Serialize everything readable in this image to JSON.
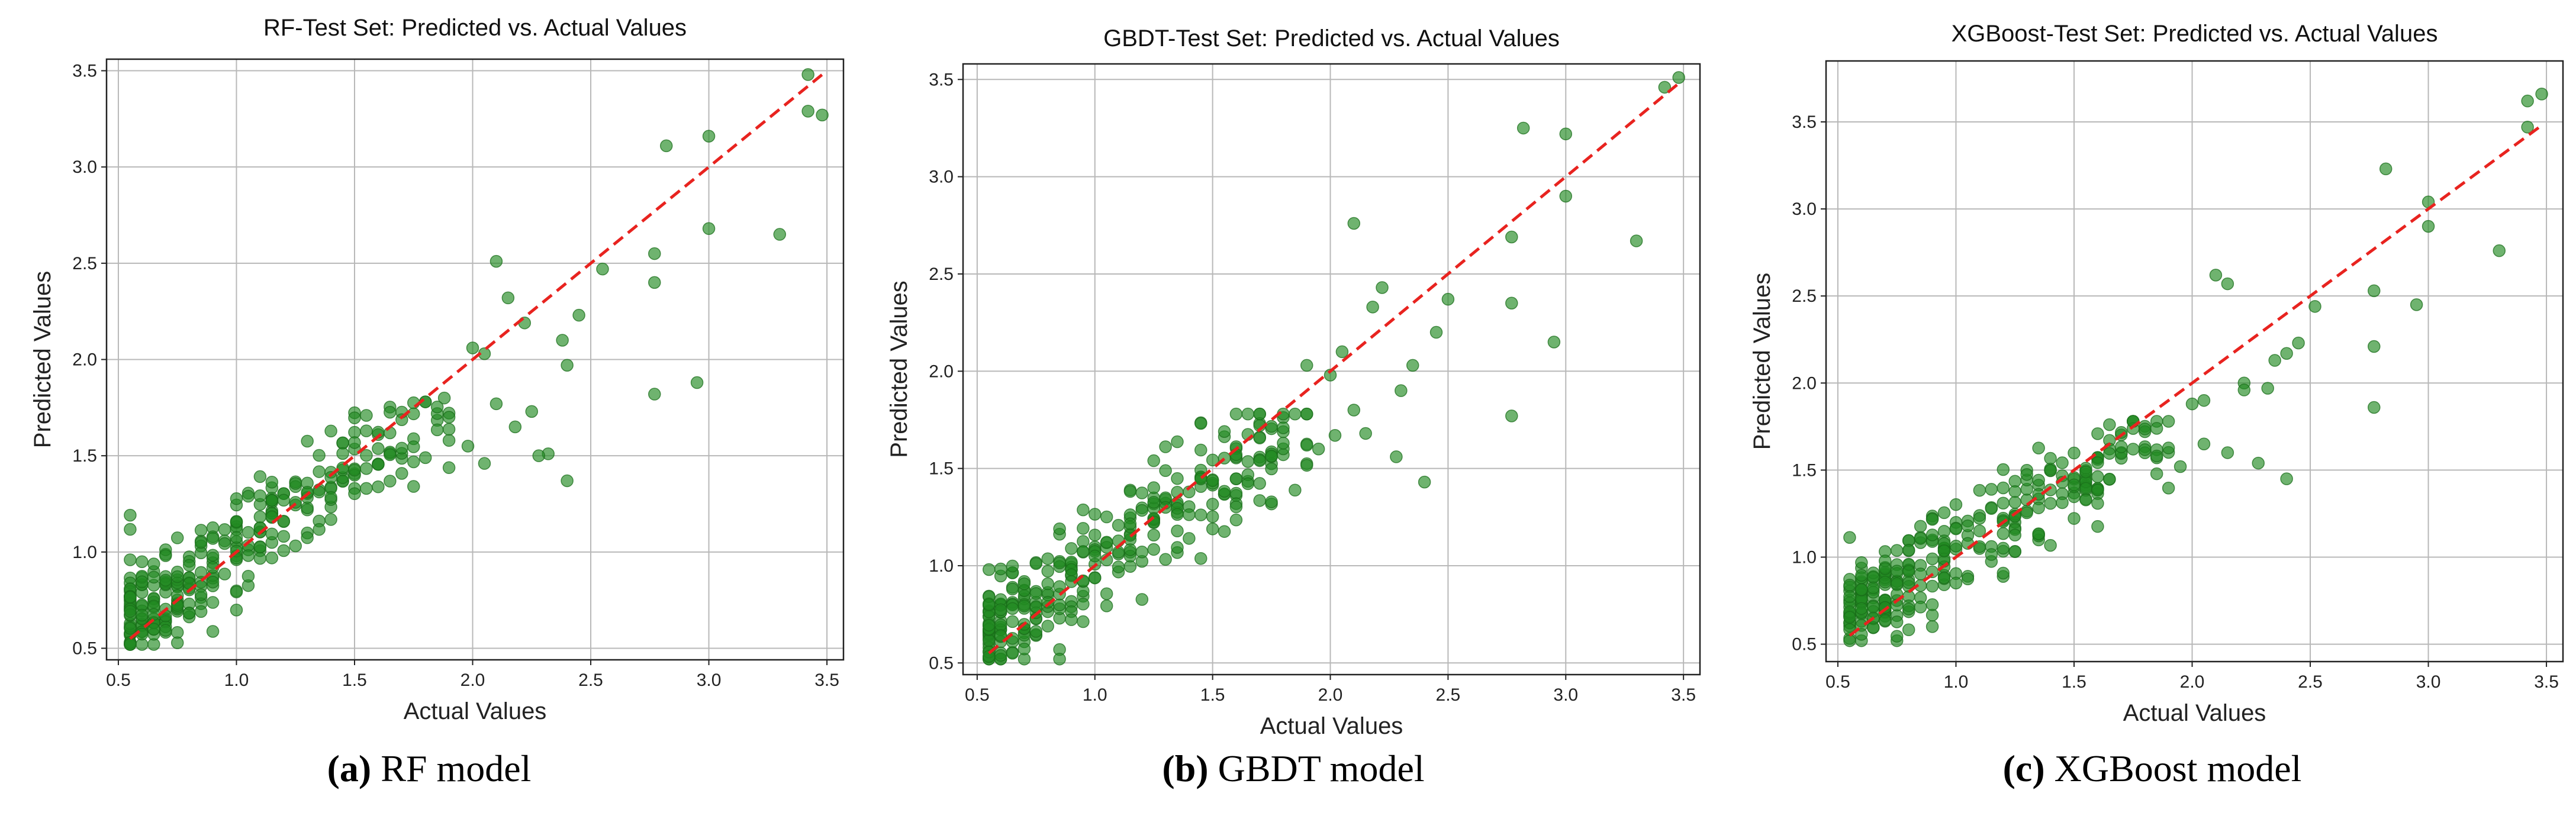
{
  "figure": {
    "panels": [
      {
        "caption_label": "(a)",
        "caption_text": "RF model"
      },
      {
        "caption_label": "(b)",
        "caption_text": "GBDT model"
      },
      {
        "caption_label": "(c)",
        "caption_text": "XGBoost model"
      }
    ]
  },
  "colors": {
    "points": "#228b22",
    "reference_line": "#e8231f",
    "grid": "#b8b8b8"
  },
  "chart_data": [
    {
      "type": "scatter",
      "title": "RF-Test Set: Predicted vs. Actual Values",
      "xlabel": "Actual Values",
      "ylabel": "Predicted Values",
      "xlim": [
        0.45,
        3.57
      ],
      "ylim": [
        0.44,
        3.56
      ],
      "xticks": [
        0.5,
        1.0,
        1.5,
        2.0,
        2.5,
        3.0,
        3.5
      ],
      "yticks": [
        0.5,
        1.0,
        1.5,
        2.0,
        2.5,
        3.0,
        3.5
      ],
      "xtick_labels": [
        "0.5",
        "1.0",
        "1.5",
        "2.0",
        "2.5",
        "3.0",
        "3.5"
      ],
      "ytick_labels": [
        "0.5",
        "1.0",
        "1.5",
        "2.0",
        "2.5",
        "3.0",
        "3.5"
      ],
      "grid": true,
      "reference_line": {
        "from": [
          0.55,
          0.55
        ],
        "to": [
          3.48,
          3.48
        ],
        "style": "dashed"
      },
      "highlight_points": [
        [
          3.42,
          3.48
        ],
        [
          3.48,
          3.27
        ],
        [
          3.42,
          3.29
        ],
        [
          3.3,
          2.65
        ],
        [
          3.0,
          3.16
        ],
        [
          3.0,
          2.68
        ],
        [
          2.82,
          3.11
        ],
        [
          2.77,
          2.55
        ],
        [
          2.77,
          2.4
        ],
        [
          2.95,
          1.88
        ],
        [
          2.77,
          1.82
        ],
        [
          2.55,
          2.47
        ],
        [
          2.45,
          2.23
        ],
        [
          2.38,
          2.1
        ],
        [
          2.4,
          1.97
        ],
        [
          2.4,
          1.37
        ],
        [
          2.32,
          1.51
        ],
        [
          2.28,
          1.5
        ],
        [
          2.25,
          1.73
        ],
        [
          2.22,
          2.19
        ],
        [
          2.15,
          2.32
        ],
        [
          2.1,
          2.51
        ],
        [
          2.05,
          2.03
        ],
        [
          2.0,
          2.06
        ],
        [
          2.1,
          1.77
        ],
        [
          2.18,
          1.65
        ],
        [
          2.05,
          1.46
        ],
        [
          1.98,
          1.55
        ],
        [
          1.88,
          1.8
        ]
      ],
      "cluster_points": 300,
      "seed": 11
    },
    {
      "type": "scatter",
      "title": "GBDT-Test Set: Predicted vs. Actual Values",
      "xlabel": "Actual Values",
      "ylabel": "Predicted Values",
      "xlim": [
        0.44,
        3.57
      ],
      "ylim": [
        0.44,
        3.58
      ],
      "xticks": [
        0.5,
        1.0,
        1.5,
        2.0,
        2.5,
        3.0,
        3.5
      ],
      "yticks": [
        0.5,
        1.0,
        1.5,
        2.0,
        2.5,
        3.0,
        3.5
      ],
      "xtick_labels": [
        "0.5",
        "1.0",
        "1.5",
        "2.0",
        "2.5",
        "3.0",
        "3.5"
      ],
      "ytick_labels": [
        "0.5",
        "1.0",
        "1.5",
        "2.0",
        "2.5",
        "3.0",
        "3.5"
      ],
      "grid": true,
      "reference_line": {
        "from": [
          0.55,
          0.55
        ],
        "to": [
          3.48,
          3.48
        ],
        "style": "dashed"
      },
      "highlight_points": [
        [
          3.48,
          3.51
        ],
        [
          3.42,
          3.46
        ],
        [
          3.3,
          2.67
        ],
        [
          3.0,
          3.22
        ],
        [
          3.0,
          2.9
        ],
        [
          2.95,
          2.15
        ],
        [
          2.82,
          3.25
        ],
        [
          2.77,
          2.69
        ],
        [
          2.77,
          2.35
        ],
        [
          2.77,
          1.77
        ],
        [
          2.5,
          2.37
        ],
        [
          2.45,
          2.2
        ],
        [
          2.4,
          1.43
        ],
        [
          2.35,
          2.03
        ],
        [
          2.3,
          1.9
        ],
        [
          2.28,
          1.56
        ],
        [
          2.22,
          2.43
        ],
        [
          2.18,
          2.33
        ],
        [
          2.15,
          1.68
        ],
        [
          2.1,
          2.76
        ],
        [
          2.05,
          2.1
        ],
        [
          2.1,
          1.8
        ],
        [
          2.0,
          1.98
        ],
        [
          1.95,
          1.6
        ],
        [
          2.02,
          1.67
        ],
        [
          1.9,
          2.03
        ]
      ],
      "cluster_points": 300,
      "seed": 23
    },
    {
      "type": "scatter",
      "title": "XGBoost-Test Set: Predicted vs. Actual Values",
      "xlabel": "Actual Values",
      "ylabel": "Predicted Values",
      "xlim": [
        0.45,
        3.57
      ],
      "ylim": [
        0.4,
        3.85
      ],
      "xticks": [
        0.5,
        1.0,
        1.5,
        2.0,
        2.5,
        3.0,
        3.5
      ],
      "yticks": [
        0.5,
        1.0,
        1.5,
        2.0,
        2.5,
        3.0,
        3.5
      ],
      "xtick_labels": [
        "0.5",
        "1.0",
        "1.5",
        "2.0",
        "2.5",
        "3.0",
        "3.5"
      ],
      "ytick_labels": [
        "0.5",
        "1.0",
        "1.5",
        "2.0",
        "2.5",
        "3.0",
        "3.5"
      ],
      "grid": true,
      "reference_line": {
        "from": [
          0.55,
          0.55
        ],
        "to": [
          3.48,
          3.48
        ],
        "style": "dashed"
      },
      "highlight_points": [
        [
          3.48,
          3.66
        ],
        [
          3.42,
          3.62
        ],
        [
          3.42,
          3.47
        ],
        [
          3.3,
          2.76
        ],
        [
          3.0,
          3.04
        ],
        [
          3.0,
          2.9
        ],
        [
          2.95,
          2.45
        ],
        [
          2.82,
          3.23
        ],
        [
          2.77,
          2.53
        ],
        [
          2.77,
          2.21
        ],
        [
          2.77,
          1.86
        ],
        [
          2.52,
          2.44
        ],
        [
          2.45,
          2.23
        ],
        [
          2.4,
          2.17
        ],
        [
          2.4,
          1.45
        ],
        [
          2.35,
          2.13
        ],
        [
          2.32,
          1.97
        ],
        [
          2.28,
          1.54
        ],
        [
          2.22,
          2.0
        ],
        [
          2.22,
          1.96
        ],
        [
          2.15,
          2.57
        ],
        [
          2.1,
          2.62
        ],
        [
          2.05,
          1.9
        ],
        [
          2.0,
          1.88
        ],
        [
          2.05,
          1.65
        ],
        [
          1.95,
          1.52
        ],
        [
          2.15,
          1.6
        ]
      ],
      "cluster_points": 300,
      "seed": 37
    }
  ]
}
